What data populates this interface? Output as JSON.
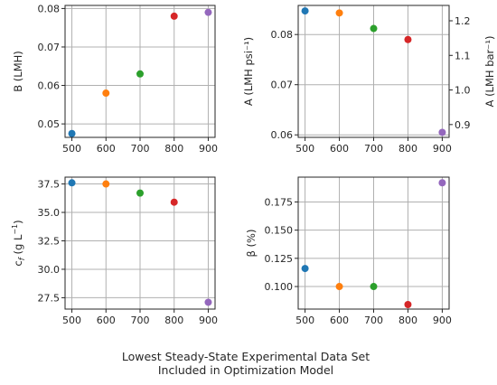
{
  "x_label_lines": [
    "Lowest Steady-State Experimental Data Set",
    "Included in Optimization Model"
  ],
  "chart_data": [
    {
      "type": "scatter",
      "ylabel": "B (LMH)",
      "x": [
        500,
        600,
        700,
        800,
        900
      ],
      "y": [
        0.0475,
        0.058,
        0.063,
        0.078,
        0.079
      ],
      "xlim": [
        480,
        920
      ],
      "ylim": [
        0.0465,
        0.0808
      ],
      "x_ticks": [
        500,
        600,
        700,
        800,
        900
      ],
      "x_tick_labels": [
        "500",
        "600",
        "700",
        "800",
        "900"
      ],
      "y_ticks": [
        0.05,
        0.06,
        0.07,
        0.08
      ],
      "y_tick_labels": [
        "0.05",
        "0.06",
        "0.07",
        "0.08"
      ],
      "grid": true
    },
    {
      "type": "scatter",
      "ylabel": "A (LMH psi⁻¹)",
      "ylabel_right": "A (LMH bar⁻¹)",
      "x": [
        500,
        600,
        700,
        800,
        900
      ],
      "y": [
        0.0847,
        0.0843,
        0.0812,
        0.079,
        0.0605
      ],
      "xlim": [
        480,
        920
      ],
      "ylim": [
        0.0595,
        0.0858
      ],
      "x_ticks": [
        500,
        600,
        700,
        800,
        900
      ],
      "x_tick_labels": [
        "500",
        "600",
        "700",
        "800",
        "900"
      ],
      "y_ticks": [
        0.06,
        0.07,
        0.08
      ],
      "y_tick_labels": [
        "0.06",
        "0.07",
        "0.08"
      ],
      "y2_ticks": [
        0.9,
        1.0,
        1.1,
        1.2
      ],
      "y2_tick_labels": [
        "0.9",
        "1.0",
        "1.1",
        "1.2"
      ],
      "y2_per_y": 14.5038,
      "grid": true
    },
    {
      "type": "scatter",
      "ylabel": "c_f (g L⁻¹)",
      "x": [
        500,
        600,
        700,
        800,
        900
      ],
      "y": [
        37.6,
        37.5,
        36.7,
        35.9,
        27.1
      ],
      "xlim": [
        480,
        920
      ],
      "ylim": [
        26.5,
        38.1
      ],
      "x_ticks": [
        500,
        600,
        700,
        800,
        900
      ],
      "x_tick_labels": [
        "500",
        "600",
        "700",
        "800",
        "900"
      ],
      "y_ticks": [
        27.5,
        30.0,
        32.5,
        35.0,
        37.5
      ],
      "y_tick_labels": [
        "27.5",
        "30.0",
        "32.5",
        "35.0",
        "37.5"
      ],
      "grid": true
    },
    {
      "type": "scatter",
      "ylabel": "β (%)",
      "x": [
        500,
        600,
        700,
        800,
        900
      ],
      "y": [
        0.116,
        0.1,
        0.1,
        0.084,
        0.192
      ],
      "xlim": [
        480,
        920
      ],
      "ylim": [
        0.08,
        0.197
      ],
      "x_ticks": [
        500,
        600,
        700,
        800,
        900
      ],
      "x_tick_labels": [
        "500",
        "600",
        "700",
        "800",
        "900"
      ],
      "y_ticks": [
        0.1,
        0.125,
        0.15,
        0.175
      ],
      "y_tick_labels": [
        "0.100",
        "0.125",
        "0.150",
        "0.175"
      ],
      "grid": true
    }
  ],
  "point_colors": [
    "#1f77b4",
    "#ff7f0e",
    "#2ca02c",
    "#d62728",
    "#9467bd"
  ]
}
